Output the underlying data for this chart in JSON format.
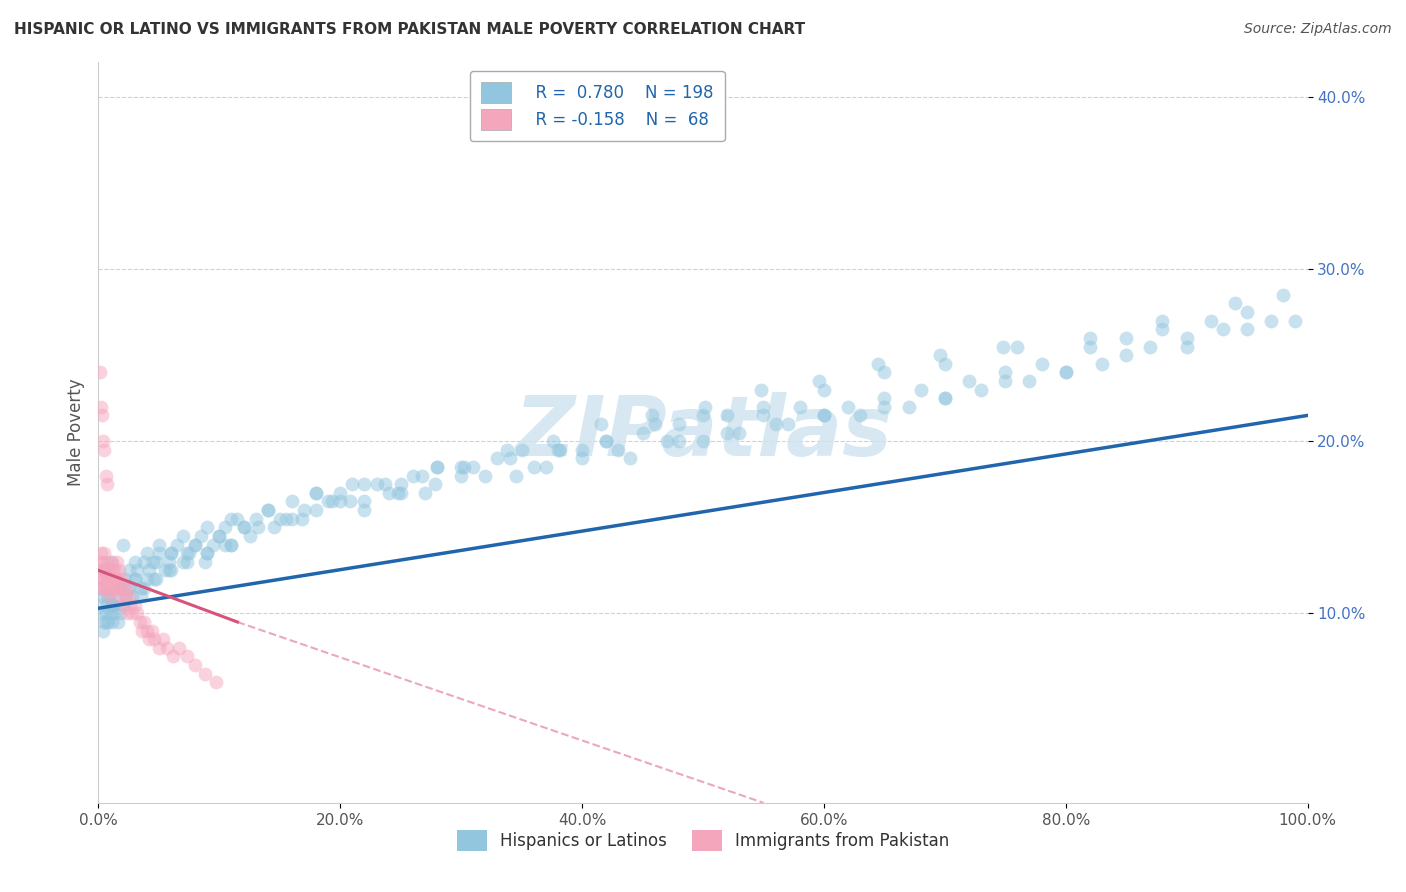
{
  "title": "HISPANIC OR LATINO VS IMMIGRANTS FROM PAKISTAN MALE POVERTY CORRELATION CHART",
  "source": "Source: ZipAtlas.com",
  "ylabel": "Male Poverty",
  "watermark": "ZIPatlas",
  "legend_blue_r": "0.780",
  "legend_blue_n": "198",
  "legend_pink_r": "-0.158",
  "legend_pink_n": "68",
  "blue_color": "#92c5de",
  "pink_color": "#f4a6bd",
  "blue_line_color": "#2166ac",
  "pink_line_color": "#d6537a",
  "blue_scatter_x": [
    0.001,
    0.002,
    0.003,
    0.004,
    0.005,
    0.006,
    0.007,
    0.008,
    0.009,
    0.01,
    0.011,
    0.012,
    0.013,
    0.015,
    0.016,
    0.018,
    0.02,
    0.022,
    0.025,
    0.028,
    0.03,
    0.032,
    0.035,
    0.038,
    0.04,
    0.042,
    0.045,
    0.048,
    0.05,
    0.055,
    0.058,
    0.06,
    0.065,
    0.07,
    0.075,
    0.08,
    0.085,
    0.09,
    0.095,
    0.1,
    0.105,
    0.11,
    0.115,
    0.12,
    0.13,
    0.14,
    0.15,
    0.16,
    0.17,
    0.18,
    0.19,
    0.2,
    0.21,
    0.22,
    0.23,
    0.24,
    0.25,
    0.26,
    0.27,
    0.28,
    0.3,
    0.32,
    0.34,
    0.35,
    0.37,
    0.38,
    0.4,
    0.42,
    0.43,
    0.45,
    0.47,
    0.48,
    0.5,
    0.52,
    0.53,
    0.55,
    0.57,
    0.58,
    0.6,
    0.62,
    0.63,
    0.65,
    0.67,
    0.68,
    0.7,
    0.72,
    0.73,
    0.75,
    0.77,
    0.78,
    0.8,
    0.82,
    0.83,
    0.85,
    0.87,
    0.88,
    0.9,
    0.92,
    0.93,
    0.95,
    0.97,
    0.98,
    0.99,
    0.005,
    0.01,
    0.015,
    0.02,
    0.025,
    0.03,
    0.04,
    0.05,
    0.06,
    0.07,
    0.08,
    0.09,
    0.1,
    0.11,
    0.12,
    0.14,
    0.16,
    0.18,
    0.2,
    0.22,
    0.25,
    0.28,
    0.3,
    0.33,
    0.36,
    0.4,
    0.44,
    0.48,
    0.52,
    0.56,
    0.6,
    0.65,
    0.7,
    0.75,
    0.8,
    0.85,
    0.9,
    0.95,
    0.003,
    0.007,
    0.012,
    0.017,
    0.023,
    0.03,
    0.038,
    0.048,
    0.06,
    0.073,
    0.088,
    0.105,
    0.125,
    0.145,
    0.168,
    0.193,
    0.22,
    0.248,
    0.278,
    0.31,
    0.345,
    0.382,
    0.42,
    0.46,
    0.5,
    0.55,
    0.6,
    0.65,
    0.7,
    0.76,
    0.82,
    0.88,
    0.94,
    0.006,
    0.011,
    0.018,
    0.026,
    0.035,
    0.046,
    0.058,
    0.073,
    0.09,
    0.11,
    0.132,
    0.155,
    0.18,
    0.208,
    0.237,
    0.268,
    0.302,
    0.338,
    0.376,
    0.416,
    0.458,
    0.502,
    0.548,
    0.596,
    0.645,
    0.696,
    0.748
  ],
  "blue_scatter_y": [
    0.115,
    0.105,
    0.11,
    0.09,
    0.095,
    0.1,
    0.105,
    0.095,
    0.11,
    0.1,
    0.095,
    0.105,
    0.1,
    0.11,
    0.095,
    0.115,
    0.105,
    0.12,
    0.115,
    0.11,
    0.12,
    0.125,
    0.115,
    0.13,
    0.12,
    0.125,
    0.13,
    0.12,
    0.135,
    0.125,
    0.13,
    0.135,
    0.14,
    0.13,
    0.135,
    0.14,
    0.145,
    0.135,
    0.14,
    0.145,
    0.15,
    0.14,
    0.155,
    0.15,
    0.155,
    0.16,
    0.155,
    0.165,
    0.16,
    0.17,
    0.165,
    0.17,
    0.175,
    0.165,
    0.175,
    0.17,
    0.175,
    0.18,
    0.17,
    0.185,
    0.185,
    0.18,
    0.19,
    0.195,
    0.185,
    0.195,
    0.19,
    0.2,
    0.195,
    0.205,
    0.2,
    0.21,
    0.2,
    0.215,
    0.205,
    0.215,
    0.21,
    0.22,
    0.215,
    0.22,
    0.215,
    0.225,
    0.22,
    0.23,
    0.225,
    0.235,
    0.23,
    0.24,
    0.235,
    0.245,
    0.24,
    0.255,
    0.245,
    0.26,
    0.255,
    0.265,
    0.26,
    0.27,
    0.265,
    0.275,
    0.27,
    0.285,
    0.27,
    0.125,
    0.13,
    0.115,
    0.14,
    0.125,
    0.13,
    0.135,
    0.14,
    0.135,
    0.145,
    0.14,
    0.15,
    0.145,
    0.155,
    0.15,
    0.16,
    0.155,
    0.17,
    0.165,
    0.175,
    0.17,
    0.185,
    0.18,
    0.19,
    0.185,
    0.195,
    0.19,
    0.2,
    0.205,
    0.21,
    0.215,
    0.22,
    0.225,
    0.235,
    0.24,
    0.25,
    0.255,
    0.265,
    0.1,
    0.11,
    0.105,
    0.115,
    0.11,
    0.12,
    0.115,
    0.13,
    0.125,
    0.135,
    0.13,
    0.14,
    0.145,
    0.15,
    0.155,
    0.165,
    0.16,
    0.17,
    0.175,
    0.185,
    0.18,
    0.195,
    0.2,
    0.21,
    0.215,
    0.22,
    0.23,
    0.24,
    0.245,
    0.255,
    0.26,
    0.27,
    0.28,
    0.095,
    0.105,
    0.1,
    0.115,
    0.11,
    0.12,
    0.125,
    0.13,
    0.135,
    0.14,
    0.15,
    0.155,
    0.16,
    0.165,
    0.175,
    0.18,
    0.185,
    0.195,
    0.2,
    0.21,
    0.215,
    0.22,
    0.23,
    0.235,
    0.245,
    0.25,
    0.255
  ],
  "pink_scatter_x": [
    0.0005,
    0.001,
    0.0015,
    0.002,
    0.0025,
    0.003,
    0.003,
    0.004,
    0.004,
    0.005,
    0.005,
    0.006,
    0.006,
    0.007,
    0.007,
    0.008,
    0.008,
    0.009,
    0.009,
    0.01,
    0.01,
    0.011,
    0.011,
    0.012,
    0.012,
    0.013,
    0.014,
    0.014,
    0.015,
    0.016,
    0.016,
    0.017,
    0.018,
    0.019,
    0.02,
    0.021,
    0.022,
    0.023,
    0.024,
    0.025,
    0.026,
    0.028,
    0.03,
    0.032,
    0.034,
    0.036,
    0.038,
    0.04,
    0.042,
    0.044,
    0.046,
    0.05,
    0.053,
    0.057,
    0.062,
    0.067,
    0.073,
    0.08,
    0.088,
    0.097,
    0.001,
    0.002,
    0.003,
    0.004,
    0.005,
    0.006,
    0.007
  ],
  "pink_scatter_y": [
    0.125,
    0.115,
    0.13,
    0.12,
    0.135,
    0.12,
    0.115,
    0.125,
    0.13,
    0.12,
    0.135,
    0.125,
    0.115,
    0.13,
    0.12,
    0.115,
    0.125,
    0.11,
    0.12,
    0.125,
    0.115,
    0.13,
    0.12,
    0.125,
    0.115,
    0.12,
    0.125,
    0.115,
    0.13,
    0.12,
    0.115,
    0.125,
    0.11,
    0.12,
    0.115,
    0.105,
    0.11,
    0.115,
    0.1,
    0.11,
    0.105,
    0.1,
    0.105,
    0.1,
    0.095,
    0.09,
    0.095,
    0.09,
    0.085,
    0.09,
    0.085,
    0.08,
    0.085,
    0.08,
    0.075,
    0.08,
    0.075,
    0.07,
    0.065,
    0.06,
    0.24,
    0.22,
    0.215,
    0.2,
    0.195,
    0.18,
    0.175
  ],
  "xlim": [
    0.0,
    1.0
  ],
  "ylim": [
    -0.01,
    0.42
  ],
  "xticks": [
    0.0,
    0.2,
    0.4,
    0.6,
    0.8,
    1.0
  ],
  "xtick_labels": [
    "0.0%",
    "20.0%",
    "40.0%",
    "60.0%",
    "80.0%",
    "100.0%"
  ],
  "yticks": [
    0.1,
    0.2,
    0.3,
    0.4
  ],
  "ytick_labels": [
    "10.0%",
    "20.0%",
    "30.0%",
    "40.0%"
  ],
  "grid_color": "#cccccc",
  "background_color": "#ffffff",
  "scatter_alpha": 0.5,
  "scatter_size": 100,
  "blue_trend_start_y": 0.103,
  "blue_trend_end_y": 0.215,
  "pink_trend_solid_x0": 0.0,
  "pink_trend_solid_y0": 0.125,
  "pink_trend_solid_x1": 0.115,
  "pink_trend_solid_y1": 0.095,
  "pink_trend_dash_x0": 0.115,
  "pink_trend_dash_y0": 0.095,
  "pink_trend_dash_x1": 0.55,
  "pink_trend_dash_y1": -0.01,
  "watermark_text": "ZIPatlas",
  "watermark_color": "#d0e4f0",
  "legend_r_blue": "0.780",
  "legend_n_blue": "198",
  "legend_r_pink": "-0.158",
  "legend_n_pink": "68"
}
